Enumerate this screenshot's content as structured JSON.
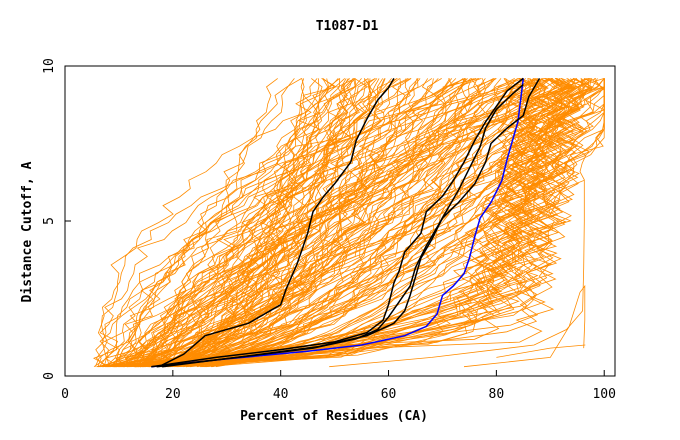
{
  "chart_data": {
    "type": "line",
    "title": "T1087-D1",
    "xlabel": "Percent of Residues (CA)",
    "ylabel": "Distance Cutoff, A",
    "xlim": [
      0,
      102
    ],
    "ylim": [
      0,
      10
    ],
    "x_ticks": [
      "0",
      "20",
      "40",
      "60",
      "80",
      "100"
    ],
    "y_ticks": [
      "0",
      "5",
      "10"
    ],
    "x_tick_values": [
      0,
      20,
      40,
      60,
      80,
      100
    ],
    "y_tick_values": [
      0,
      5,
      10
    ],
    "grid": false,
    "colors": {
      "background_models": "#ff8c00",
      "highlight_models": "#000000",
      "selected_model": "#0000ff"
    },
    "series": [
      {
        "color": "#0000ff",
        "points": [
          [
            16,
            0.3
          ],
          [
            30,
            0.55
          ],
          [
            45,
            0.8
          ],
          [
            55,
            1.0
          ],
          [
            63,
            1.3
          ],
          [
            67,
            1.6
          ],
          [
            69,
            2.0
          ],
          [
            70,
            2.6
          ],
          [
            72,
            2.9
          ],
          [
            74,
            3.3
          ],
          [
            75,
            3.8
          ],
          [
            76,
            4.5
          ],
          [
            77,
            5.1
          ],
          [
            79,
            5.6
          ],
          [
            81,
            6.3
          ],
          [
            82,
            7.0
          ],
          [
            83,
            7.6
          ],
          [
            84,
            8.2
          ],
          [
            84.5,
            8.9
          ],
          [
            85,
            9.6
          ]
        ]
      },
      {
        "color": "#000000",
        "points": [
          [
            18,
            0.35
          ],
          [
            22,
            0.7
          ],
          [
            26,
            1.3
          ],
          [
            34,
            1.7
          ],
          [
            40,
            2.3
          ],
          [
            41,
            2.8
          ],
          [
            43,
            3.6
          ],
          [
            44,
            4.1
          ],
          [
            45,
            4.6
          ],
          [
            46,
            5.3
          ],
          [
            48,
            5.8
          ],
          [
            50,
            6.2
          ],
          [
            53,
            6.9
          ],
          [
            54,
            7.6
          ],
          [
            56,
            8.3
          ],
          [
            58,
            8.9
          ],
          [
            60,
            9.3
          ],
          [
            61,
            9.6
          ]
        ]
      },
      {
        "color": "#000000",
        "points": [
          [
            16,
            0.3
          ],
          [
            28,
            0.6
          ],
          [
            40,
            0.85
          ],
          [
            50,
            1.1
          ],
          [
            56,
            1.4
          ],
          [
            59,
            1.8
          ],
          [
            60,
            2.3
          ],
          [
            61,
            3.0
          ],
          [
            62,
            3.4
          ],
          [
            63,
            4.0
          ],
          [
            66,
            4.6
          ],
          [
            67,
            5.3
          ],
          [
            70,
            5.8
          ],
          [
            72,
            6.3
          ],
          [
            74,
            6.9
          ],
          [
            76,
            7.6
          ],
          [
            78,
            8.2
          ],
          [
            80,
            8.7
          ],
          [
            82,
            9.2
          ],
          [
            85,
            9.6
          ]
        ]
      },
      {
        "color": "#000000",
        "points": [
          [
            17,
            0.3
          ],
          [
            32,
            0.6
          ],
          [
            46,
            0.9
          ],
          [
            54,
            1.2
          ],
          [
            58,
            1.5
          ],
          [
            60,
            1.9
          ],
          [
            62,
            2.4
          ],
          [
            64,
            2.9
          ],
          [
            65,
            3.5
          ],
          [
            67,
            4.2
          ],
          [
            69,
            4.8
          ],
          [
            71,
            5.4
          ],
          [
            73,
            6.0
          ],
          [
            75,
            6.7
          ],
          [
            77,
            7.4
          ],
          [
            78,
            8.0
          ],
          [
            80,
            8.6
          ],
          [
            83,
            9.1
          ],
          [
            85,
            9.4
          ]
        ]
      },
      {
        "color": "#000000",
        "points": [
          [
            18,
            0.3
          ],
          [
            34,
            0.65
          ],
          [
            47,
            0.95
          ],
          [
            56,
            1.3
          ],
          [
            61,
            1.7
          ],
          [
            63,
            2.1
          ],
          [
            64,
            2.6
          ],
          [
            65,
            3.2
          ],
          [
            66,
            3.8
          ],
          [
            68,
            4.4
          ],
          [
            70,
            5.1
          ],
          [
            73,
            5.6
          ],
          [
            76,
            6.2
          ],
          [
            78,
            6.9
          ],
          [
            79,
            7.5
          ],
          [
            82,
            8.0
          ],
          [
            85,
            8.4
          ],
          [
            86,
            9.0
          ],
          [
            88,
            9.6
          ]
        ]
      }
    ]
  }
}
